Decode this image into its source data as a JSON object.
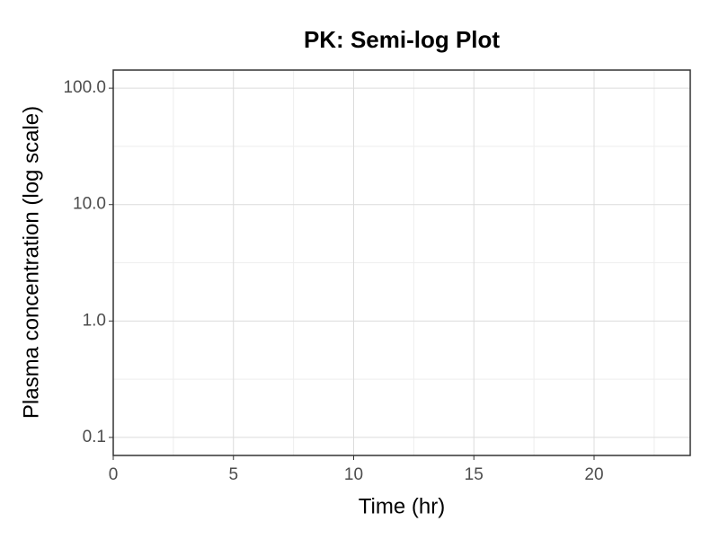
{
  "chart_data": {
    "type": "line",
    "title": "PK: Semi-log Plot",
    "x_label": "Time (hr)",
    "y_label": "Plasma concentration (log scale)",
    "series": [],
    "xlim": [
      0,
      24
    ],
    "xticks": [
      0,
      5,
      10,
      15,
      20
    ],
    "ylim": [
      0.07,
      143
    ],
    "yticks": [
      0.1,
      {
        "value": 1,
        "label": "1.0"
      },
      {
        "value": 10,
        "label": "10.0"
      },
      {
        "value": 100,
        "label": "100.0"
      }
    ],
    "y_scale": "log",
    "grid": true
  }
}
